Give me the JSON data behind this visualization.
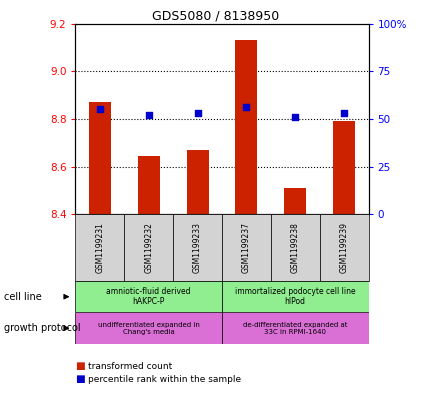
{
  "title": "GDS5080 / 8138950",
  "samples": [
    "GSM1199231",
    "GSM1199232",
    "GSM1199233",
    "GSM1199237",
    "GSM1199238",
    "GSM1199239"
  ],
  "red_values": [
    8.87,
    8.645,
    8.67,
    9.13,
    8.51,
    8.79
  ],
  "blue_values": [
    55,
    52,
    53,
    56,
    51,
    53
  ],
  "ylim_left": [
    8.4,
    9.2
  ],
  "ylim_right": [
    0,
    100
  ],
  "yticks_left": [
    8.4,
    8.6,
    8.8,
    9.0,
    9.2
  ],
  "yticks_right": [
    0,
    25,
    50,
    75,
    100
  ],
  "ytick_labels_right": [
    "0",
    "25",
    "50",
    "75",
    "100%"
  ],
  "cell_line_labels": [
    "amniotic-fluid derived\nhAKPC-P",
    "immortalized podocyte cell line\nhIPod"
  ],
  "growth_protocol_labels": [
    "undifferentiated expanded in\nChang's media",
    "de-differentiated expanded at\n33C in RPMI-1640"
  ],
  "cell_line_spans": [
    [
      0,
      3
    ],
    [
      3,
      6
    ]
  ],
  "legend_red": "transformed count",
  "legend_blue": "percentile rank within the sample",
  "bar_color": "#cc2200",
  "dot_color": "#0000cc",
  "cell_line_color": "#90ee90",
  "growth_protocol_color": "#da70d6",
  "bg_color": "#d3d3d3",
  "grid_vals": [
    8.6,
    8.8,
    9.0
  ]
}
